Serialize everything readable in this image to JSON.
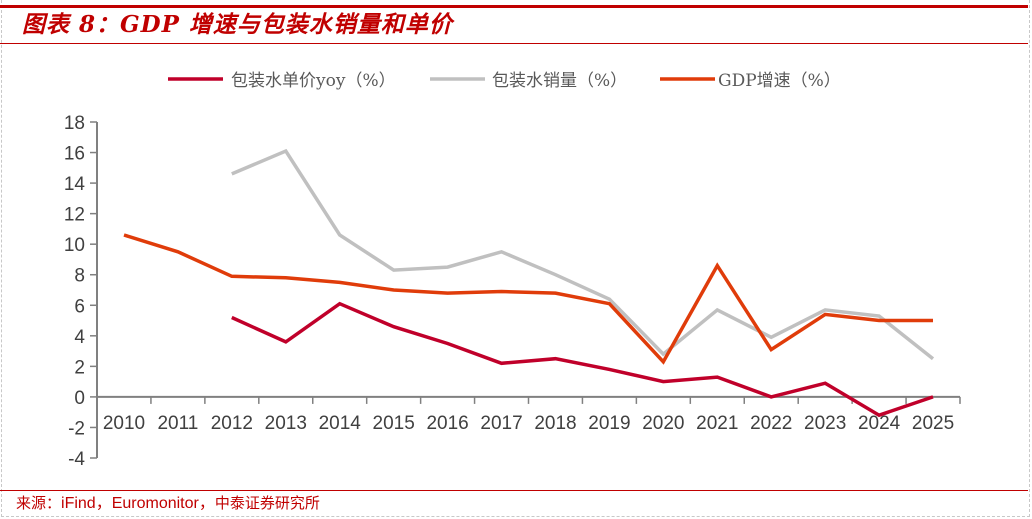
{
  "header": {
    "title": "图表 8：GDP 增速与包装水销量和单价"
  },
  "footer": {
    "source_prefix": "来源：",
    "source_main": "iFind，Euromonitor，",
    "source_suffix": "中泰证券研究所"
  },
  "colors": {
    "brand_red": "#c00000",
    "price_yoy": "#c0002a",
    "volume": "#c0c0c0",
    "gdp": "#e03c0a"
  },
  "chart_data": {
    "type": "line",
    "title": "GDP 增速与包装水销量和单价",
    "xlabel": "",
    "ylabel": "",
    "ylim": [
      -4,
      18
    ],
    "yticks": [
      "18",
      "16",
      "14",
      "12",
      "10",
      "8",
      "6",
      "4",
      "2",
      "0",
      "-2",
      "-4"
    ],
    "ytick_values": [
      18,
      16,
      14,
      12,
      10,
      8,
      6,
      4,
      2,
      0,
      -2,
      -4
    ],
    "categories": [
      "2010",
      "2011",
      "2012",
      "2013",
      "2014",
      "2015",
      "2016",
      "2017",
      "2018",
      "2019",
      "2020",
      "2021",
      "2022",
      "2023",
      "2024",
      "2025"
    ],
    "legend_position": "top",
    "grid": false,
    "series": [
      {
        "name": "包装水单价yoy（%）",
        "color": "#c0002a",
        "values": [
          null,
          null,
          5.2,
          3.6,
          6.1,
          4.6,
          3.5,
          2.2,
          2.5,
          1.8,
          1.0,
          1.3,
          0.0,
          0.9,
          -1.2,
          0.0
        ]
      },
      {
        "name": "包装水销量（%）",
        "color": "#c0c0c0",
        "values": [
          null,
          null,
          14.6,
          16.1,
          10.6,
          8.3,
          8.5,
          9.5,
          8.0,
          6.4,
          2.8,
          5.7,
          3.9,
          5.7,
          5.3,
          2.5
        ]
      },
      {
        "name": "GDP增速（%）",
        "color": "#e03c0a",
        "values": [
          10.6,
          9.5,
          7.9,
          7.8,
          7.5,
          7.0,
          6.8,
          6.9,
          6.8,
          6.1,
          2.3,
          8.6,
          3.1,
          5.4,
          5.0,
          5.0
        ]
      }
    ]
  }
}
